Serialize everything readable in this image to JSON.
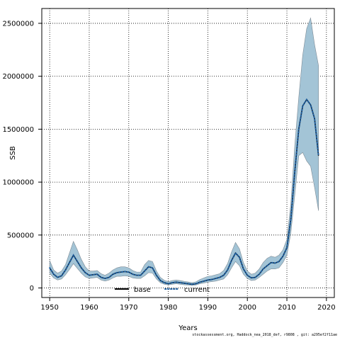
{
  "chart_data": {
    "type": "line",
    "xlabel": "Years",
    "ylabel": "SSB",
    "xlim": [
      1948,
      2022
    ],
    "ylim": [
      -90000,
      2640000
    ],
    "xticks": [
      1950,
      1960,
      1970,
      1980,
      1990,
      2000,
      2010,
      2020
    ],
    "yticks": [
      0,
      500000,
      1000000,
      1500000,
      2000000,
      2500000
    ],
    "grid": true,
    "legend_position": "bottom-center",
    "band_color": "#a3c4d6",
    "band_edge_color": "#7f8c96",
    "x": [
      1950,
      1951,
      1952,
      1953,
      1954,
      1955,
      1956,
      1957,
      1958,
      1959,
      1960,
      1961,
      1962,
      1963,
      1964,
      1965,
      1966,
      1967,
      1968,
      1969,
      1970,
      1971,
      1972,
      1973,
      1974,
      1975,
      1976,
      1977,
      1978,
      1979,
      1980,
      1981,
      1982,
      1983,
      1984,
      1985,
      1986,
      1987,
      1988,
      1989,
      1990,
      1991,
      1992,
      1993,
      1994,
      1995,
      1996,
      1997,
      1998,
      1999,
      2000,
      2001,
      2002,
      2003,
      2004,
      2005,
      2006,
      2007,
      2008,
      2009,
      2010,
      2011,
      2012,
      2013,
      2014,
      2015,
      2016,
      2017,
      2018
    ],
    "series": [
      {
        "name": "base",
        "line_style": "solid",
        "color": "#000000",
        "values": [
          190000,
          130000,
          100000,
          115000,
          170000,
          240000,
          310000,
          250000,
          190000,
          145000,
          120000,
          125000,
          130000,
          100000,
          90000,
          100000,
          130000,
          145000,
          150000,
          155000,
          150000,
          130000,
          120000,
          120000,
          160000,
          200000,
          190000,
          120000,
          70000,
          50000,
          40000,
          50000,
          55000,
          50000,
          45000,
          40000,
          35000,
          40000,
          55000,
          65000,
          75000,
          80000,
          90000,
          100000,
          120000,
          170000,
          260000,
          330000,
          290000,
          180000,
          120000,
          95000,
          100000,
          130000,
          180000,
          210000,
          240000,
          235000,
          250000,
          300000,
          380000,
          650000,
          1100000,
          1500000,
          1720000,
          1780000,
          1730000,
          1600000,
          1250000
        ]
      },
      {
        "name": "current",
        "line_style": "dotted",
        "color": "#1f5f9f",
        "values": [
          190000,
          130000,
          100000,
          115000,
          170000,
          240000,
          310000,
          250000,
          190000,
          145000,
          120000,
          125000,
          130000,
          100000,
          90000,
          100000,
          130000,
          145000,
          150000,
          155000,
          150000,
          130000,
          120000,
          120000,
          160000,
          200000,
          190000,
          120000,
          70000,
          50000,
          40000,
          50000,
          55000,
          50000,
          45000,
          40000,
          35000,
          40000,
          55000,
          65000,
          75000,
          80000,
          90000,
          100000,
          120000,
          170000,
          260000,
          330000,
          290000,
          180000,
          120000,
          95000,
          100000,
          130000,
          180000,
          210000,
          240000,
          235000,
          250000,
          300000,
          380000,
          650000,
          1100000,
          1500000,
          1720000,
          1780000,
          1730000,
          1600000,
          1250000
        ]
      }
    ],
    "band": {
      "upper": [
        260000,
        170000,
        140000,
        160000,
        220000,
        330000,
        440000,
        360000,
        270000,
        200000,
        160000,
        160000,
        165000,
        135000,
        120000,
        140000,
        170000,
        190000,
        200000,
        200000,
        190000,
        165000,
        150000,
        150000,
        220000,
        260000,
        250000,
        160000,
        100000,
        72000,
        60000,
        70000,
        75000,
        70000,
        63000,
        57000,
        50000,
        58000,
        80000,
        95000,
        110000,
        115000,
        125000,
        135000,
        165000,
        230000,
        340000,
        430000,
        370000,
        240000,
        160000,
        130000,
        140000,
        180000,
        240000,
        280000,
        300000,
        290000,
        310000,
        360000,
        460000,
        800000,
        1350000,
        1800000,
        2200000,
        2450000,
        2550000,
        2300000,
        2100000
      ],
      "lower": [
        140000,
        95000,
        75000,
        85000,
        125000,
        175000,
        230000,
        185000,
        140000,
        105000,
        90000,
        95000,
        100000,
        75000,
        65000,
        75000,
        95000,
        110000,
        110000,
        115000,
        110000,
        95000,
        90000,
        90000,
        115000,
        145000,
        140000,
        85000,
        50000,
        35000,
        28000,
        35000,
        40000,
        35000,
        30000,
        27000,
        24000,
        28000,
        40000,
        47000,
        55000,
        60000,
        65000,
        75000,
        85000,
        125000,
        190000,
        250000,
        210000,
        130000,
        90000,
        70000,
        75000,
        100000,
        130000,
        160000,
        180000,
        180000,
        190000,
        240000,
        310000,
        520000,
        880000,
        1250000,
        1280000,
        1200000,
        1150000,
        950000,
        730000
      ]
    }
  },
  "footer_text": "stockassessment.org, Haddock_nea_2018_def, r9808 , git: a295ef2f11ae"
}
